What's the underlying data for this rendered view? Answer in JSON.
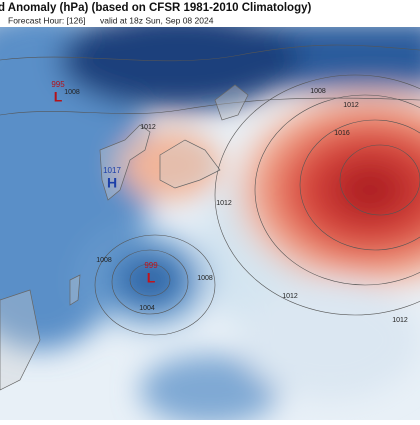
{
  "header": {
    "title": "d Anomaly (hPa) (based on CFSR 1981-2010 Climatology)",
    "forecast": "Forecast Hour: [126]",
    "valid": "valid at 18z Sun, Sep 08 2024"
  },
  "centers": [
    {
      "pressure": 995,
      "symbol": "L"
    },
    {
      "pressure": 1017,
      "symbol": "H"
    },
    {
      "pressure": 999,
      "symbol": "L"
    }
  ],
  "isobar_labels": [
    1008,
    1012,
    1016,
    1012,
    1012,
    1008,
    1008,
    1004,
    1012,
    1008,
    1012
  ]
}
